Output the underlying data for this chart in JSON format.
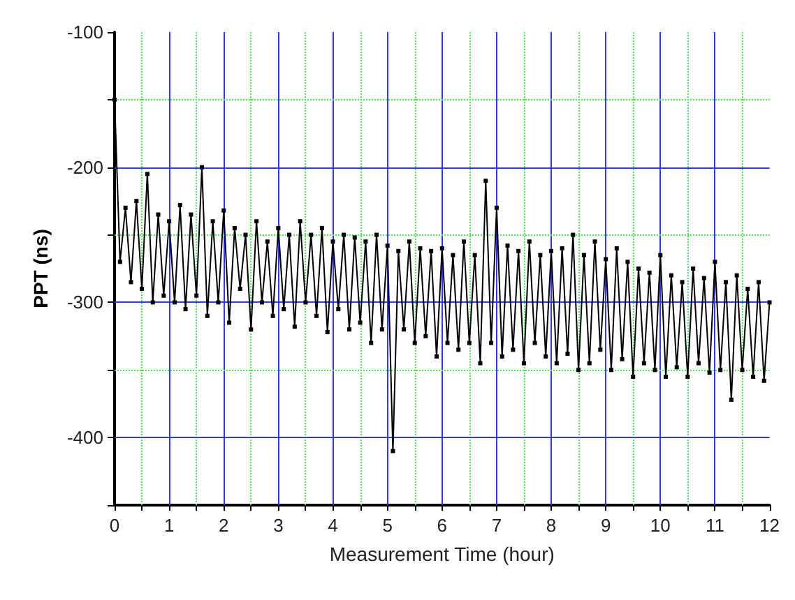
{
  "chart_data": {
    "type": "line",
    "xlabel": "Measurement Time (hour)",
    "ylabel": "PPT (ns)",
    "xlim": [
      0,
      12
    ],
    "ylim": [
      -450,
      -100
    ],
    "xticks": [
      0,
      {
        "value": 0.5,
        "label": null
      },
      1,
      {
        "value": 1.5,
        "label": null
      },
      2,
      {
        "value": 2.5,
        "label": null
      },
      3,
      {
        "value": 3.5,
        "label": null
      },
      4,
      {
        "value": 4.5,
        "label": null
      },
      5,
      {
        "value": 5.5,
        "label": null
      },
      6,
      {
        "value": 6.5,
        "label": null
      },
      7,
      {
        "value": 7.5,
        "label": null
      },
      8,
      {
        "value": 8.5,
        "label": null
      },
      9,
      {
        "value": 9.5,
        "label": null
      },
      10,
      {
        "value": 10.5,
        "label": null
      },
      11,
      {
        "value": 11.5,
        "label": null
      },
      12
    ],
    "yticks": [
      {
        "value": -450,
        "label": null
      },
      -400,
      {
        "value": -350,
        "label": null
      },
      -300,
      {
        "value": -250,
        "label": null
      },
      -200,
      {
        "value": -150,
        "label": null
      },
      -100
    ],
    "grid": true,
    "marker": "square",
    "line_style": "solid",
    "x": [
      0.0,
      0.1,
      0.2,
      0.3,
      0.4,
      0.5,
      0.6,
      0.7,
      0.8,
      0.9,
      1.0,
      1.1,
      1.2,
      1.3,
      1.4,
      1.5,
      1.6,
      1.7,
      1.8,
      1.9,
      2.0,
      2.1,
      2.2,
      2.3,
      2.4,
      2.5,
      2.6,
      2.7,
      2.8,
      2.9,
      3.0,
      3.1,
      3.2,
      3.3,
      3.4,
      3.5,
      3.6,
      3.7,
      3.8,
      3.9,
      4.0,
      4.1,
      4.2,
      4.3,
      4.4,
      4.5,
      4.6,
      4.7,
      4.8,
      4.9,
      5.0,
      5.1,
      5.2,
      5.3,
      5.4,
      5.5,
      5.6,
      5.7,
      5.8,
      5.9,
      6.0,
      6.1,
      6.2,
      6.3,
      6.4,
      6.5,
      6.6,
      6.7,
      6.8,
      6.9,
      7.0,
      7.1,
      7.2,
      7.3,
      7.4,
      7.5,
      7.6,
      7.7,
      7.8,
      7.9,
      8.0,
      8.1,
      8.2,
      8.3,
      8.4,
      8.5,
      8.6,
      8.7,
      8.8,
      8.9,
      9.0,
      9.1,
      9.2,
      9.3,
      9.4,
      9.5,
      9.6,
      9.7,
      9.8,
      9.9,
      10.0,
      10.1,
      10.2,
      10.3,
      10.4,
      10.5,
      10.6,
      10.7,
      10.8,
      10.9,
      11.0,
      11.1,
      11.2,
      11.3,
      11.4,
      11.5,
      11.6,
      11.7,
      11.8,
      11.9,
      12.0
    ],
    "series": [
      {
        "color": "#000000",
        "values": [
          -150,
          -270,
          -230,
          -285,
          -225,
          -290,
          -205,
          -300,
          -235,
          -295,
          -240,
          -300,
          -228,
          -305,
          -235,
          -295,
          -200,
          -310,
          -240,
          -300,
          -232,
          -315,
          -245,
          -290,
          -250,
          -320,
          -240,
          -300,
          -255,
          -310,
          -245,
          -305,
          -250,
          -318,
          -240,
          -300,
          -250,
          -310,
          -245,
          -322,
          -255,
          -305,
          -250,
          -320,
          -252,
          -315,
          -255,
          -330,
          -250,
          -320,
          -258,
          -410,
          -262,
          -320,
          -255,
          -330,
          -260,
          -325,
          -262,
          -340,
          -260,
          -330,
          -265,
          -335,
          -255,
          -330,
          -265,
          -345,
          -210,
          -330,
          -230,
          -340,
          -258,
          -335,
          -262,
          -345,
          -255,
          -330,
          -265,
          -340,
          -262,
          -345,
          -260,
          -338,
          -250,
          -350,
          -265,
          -345,
          -255,
          -335,
          -268,
          -350,
          -260,
          -342,
          -270,
          -355,
          -275,
          -345,
          -278,
          -350,
          -265,
          -355,
          -280,
          -348,
          -285,
          -355,
          -275,
          -345,
          -282,
          -352,
          -270,
          -350,
          -285,
          -372,
          -280,
          -350,
          -290,
          -355,
          -285,
          -358,
          -300
        ]
      }
    ]
  }
}
